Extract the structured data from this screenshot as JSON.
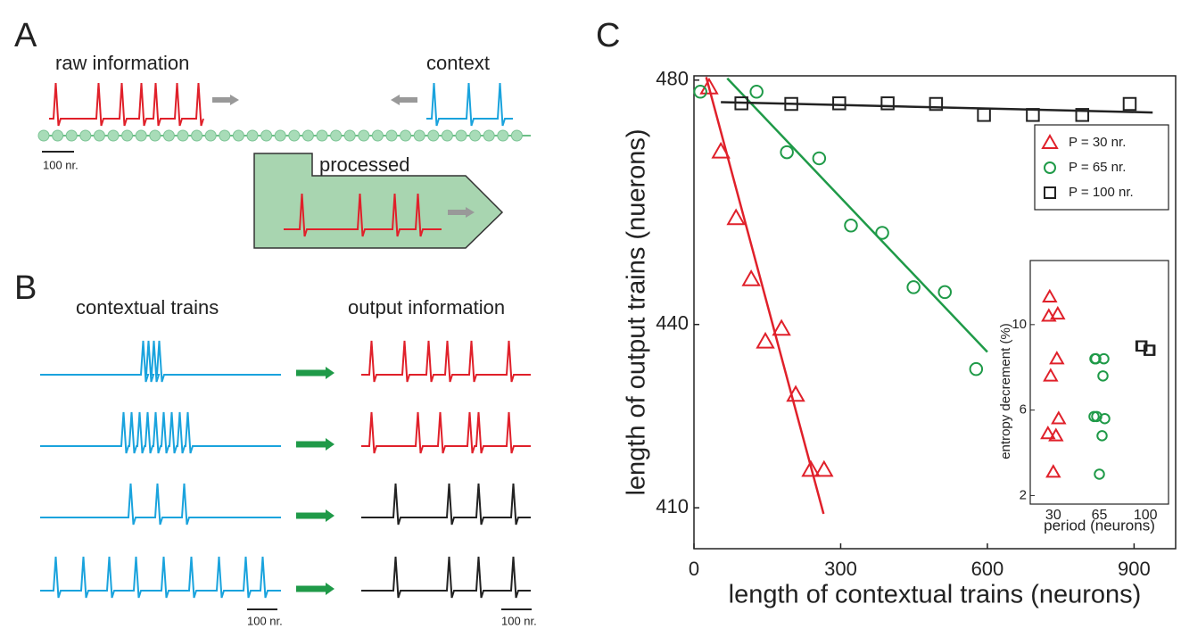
{
  "panel_a": {
    "label": "A",
    "raw_information": "raw information",
    "context": "context",
    "scale": "100 nr.",
    "processed": "processed"
  },
  "panel_b": {
    "label": "B",
    "contextual_trains": "contextual trains",
    "output_information": "output information",
    "scale_left": "100 nr.",
    "scale_right": "100 nr."
  },
  "chart_data": [
    {
      "type": "scatter",
      "panel_label": "C",
      "xlabel": "length of contextual trains (neurons)",
      "ylabel": "length of output trains (nuerons)",
      "xlim": [
        0,
        985
      ],
      "ylim": [
        403.3,
        480.7
      ],
      "xticks": [
        0,
        300,
        600,
        900
      ],
      "yticks": [
        410,
        440,
        480
      ],
      "legend": "upper right",
      "series": [
        {
          "name": "P = 30 nr.",
          "color": "#e0202a",
          "marker": "triangle",
          "x": [
            31,
            55,
            86,
            117,
            146,
            179,
            208,
            239,
            266
          ],
          "y": [
            478.8,
            468.3,
            457.4,
            447.4,
            437.2,
            439.3,
            428.5,
            416.2,
            416.2
          ]
        },
        {
          "name": "P = 65 nr.",
          "color": "#1f9a48",
          "marker": "circle",
          "x": [
            13,
            128,
            190,
            256,
            321,
            385,
            449,
            513,
            577
          ],
          "y": [
            478.1,
            478.1,
            468.2,
            467.2,
            456.2,
            455.0,
            446.1,
            445.3,
            432.7
          ]
        },
        {
          "name": "P = 100 nr.",
          "color": "#222222",
          "marker": "square",
          "x": [
            97,
            199,
            297,
            396,
            495,
            593,
            693,
            794,
            891
          ],
          "y": [
            476.2,
            476.1,
            476.2,
            476.2,
            476.1,
            474.3,
            474.3,
            474.3,
            476.1
          ]
        }
      ],
      "fits": [
        {
          "color": "#e0202a",
          "x": [
            25,
            265
          ],
          "y": [
            480.5,
            409
          ]
        },
        {
          "color": "#1f9a48",
          "x": [
            68,
            600
          ],
          "y": [
            480.3,
            435.5
          ]
        },
        {
          "color": "#222222",
          "x": [
            55,
            938
          ],
          "y": [
            476.4,
            474.7
          ]
        }
      ]
    },
    {
      "type": "strip",
      "xlabel": "period (neurons)",
      "ylabel": "entropy decrement (%)",
      "categories": [
        "30",
        "65",
        "100"
      ],
      "ylim": [
        1.6,
        13
      ],
      "yticks": [
        2,
        6,
        10
      ],
      "series": [
        {
          "color": "#e0202a",
          "marker": "triangle",
          "values": [
            [
              11.3,
              10.5,
              10.4,
              8.4,
              7.6,
              5.6,
              4.9,
              4.8,
              3.1
            ],
            [],
            []
          ]
        },
        {
          "color": "#1f9a48",
          "marker": "circle",
          "values": [
            [],
            [
              8.4,
              8.4,
              8.4,
              7.6,
              5.7,
              5.6,
              5.7,
              4.8,
              3.0
            ],
            []
          ]
        },
        {
          "color": "#222222",
          "marker": "square",
          "values": [
            [],
            [],
            [
              9.0,
              8.8,
              9.0,
              8.8
            ]
          ]
        }
      ]
    }
  ]
}
